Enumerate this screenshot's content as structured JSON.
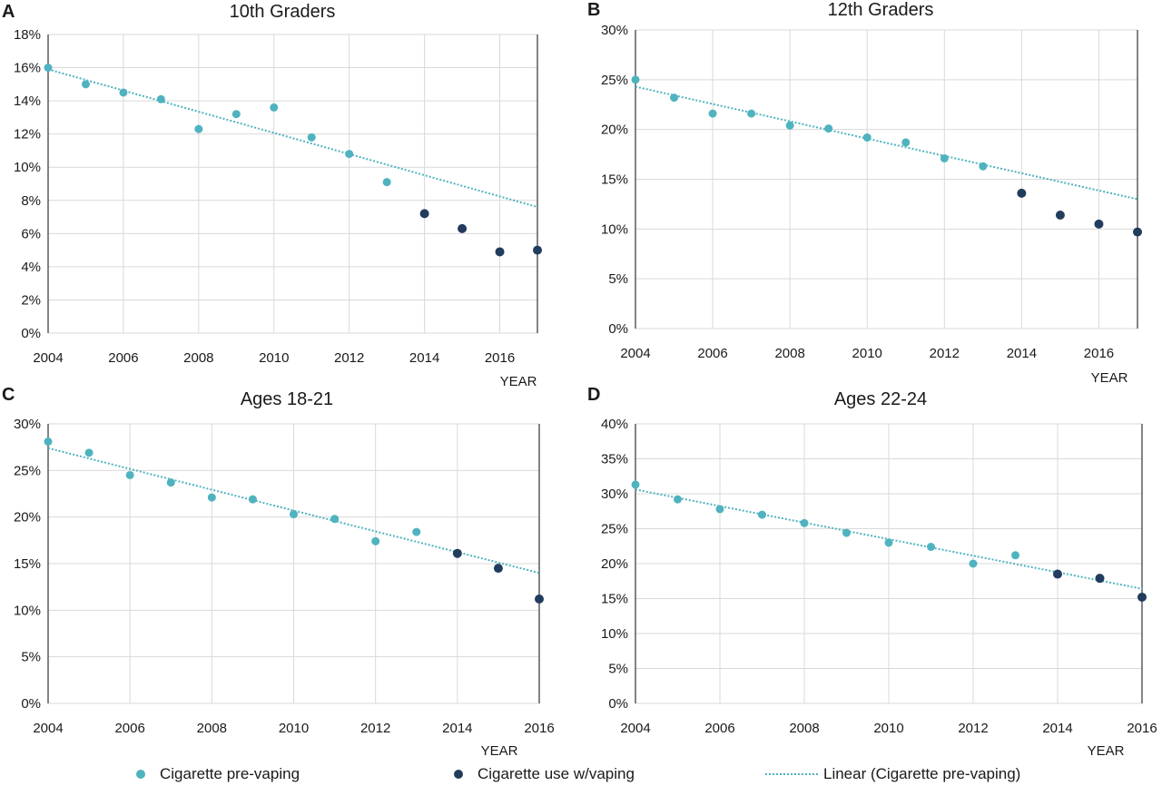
{
  "colors": {
    "pre_vaping": "#4fb3bf",
    "with_vaping": "#223c5e",
    "trendline": "#4fb3bf",
    "grid": "#d9d9d9"
  },
  "legend": {
    "pre_vaping": "Cigarette pre-vaping",
    "with_vaping": "Cigarette use w/vaping",
    "linear": "Linear (Cigarette pre-vaping)"
  },
  "chart_data": [
    {
      "type": "scatter",
      "panel_letter": "A",
      "title": "10th Graders",
      "xlabel": "YEAR",
      "ylabel": "",
      "xlim": [
        2004,
        2017
      ],
      "xticks": [
        "2004",
        "2006",
        "2008",
        "2010",
        "2012",
        "2014",
        "2016"
      ],
      "ylim": [
        0,
        18
      ],
      "yticks": [
        "0%",
        "2%",
        "4%",
        "6%",
        "8%",
        "10%",
        "12%",
        "14%",
        "16%",
        "18%"
      ],
      "grid": true,
      "series": [
        {
          "name": "Cigarette pre-vaping",
          "x": [
            2004,
            2005,
            2006,
            2007,
            2008,
            2009,
            2010,
            2011,
            2012,
            2013
          ],
          "y": [
            16.0,
            15.0,
            14.5,
            14.1,
            12.3,
            13.2,
            13.6,
            11.8,
            10.8,
            9.1
          ]
        },
        {
          "name": "Cigarette use w/vaping",
          "x": [
            2014,
            2015,
            2016,
            2017
          ],
          "y": [
            7.2,
            6.3,
            4.9,
            5.0
          ]
        }
      ],
      "trendline": {
        "name": "Linear (Cigarette pre-vaping)",
        "x": [
          2004,
          2017
        ],
        "y": [
          15.9,
          7.6
        ]
      }
    },
    {
      "type": "scatter",
      "panel_letter": "B",
      "title": "12th Graders",
      "xlabel": "YEAR",
      "ylabel": "",
      "xlim": [
        2004,
        2017
      ],
      "xticks": [
        "2004",
        "2006",
        "2008",
        "2010",
        "2012",
        "2014",
        "2016"
      ],
      "ylim": [
        0,
        30
      ],
      "yticks": [
        "0%",
        "5%",
        "10%",
        "15%",
        "20%",
        "25%",
        "30%"
      ],
      "grid": true,
      "series": [
        {
          "name": "Cigarette pre-vaping",
          "x": [
            2004,
            2005,
            2006,
            2007,
            2008,
            2009,
            2010,
            2011,
            2012,
            2013
          ],
          "y": [
            25.0,
            23.2,
            21.6,
            21.6,
            20.4,
            20.1,
            19.2,
            18.7,
            17.1,
            16.3
          ]
        },
        {
          "name": "Cigarette use w/vaping",
          "x": [
            2014,
            2015,
            2016,
            2017
          ],
          "y": [
            13.6,
            11.4,
            10.5,
            9.7
          ]
        }
      ],
      "trendline": {
        "name": "Linear (Cigarette pre-vaping)",
        "x": [
          2004,
          2017
        ],
        "y": [
          24.3,
          13.0
        ]
      }
    },
    {
      "type": "scatter",
      "panel_letter": "C",
      "title": "Ages 18-21",
      "xlabel": "YEAR",
      "ylabel": "",
      "xlim": [
        2004,
        2016
      ],
      "xticks": [
        "2004",
        "2006",
        "2008",
        "2010",
        "2012",
        "2014",
        "2016"
      ],
      "ylim": [
        0,
        30
      ],
      "yticks": [
        "0%",
        "5%",
        "10%",
        "15%",
        "20%",
        "25%",
        "30%"
      ],
      "grid": true,
      "series": [
        {
          "name": "Cigarette pre-vaping",
          "x": [
            2004,
            2005,
            2006,
            2007,
            2008,
            2009,
            2010,
            2011,
            2012,
            2013
          ],
          "y": [
            28.1,
            26.9,
            24.5,
            23.7,
            22.1,
            21.9,
            20.3,
            19.8,
            17.4,
            18.4
          ]
        },
        {
          "name": "Cigarette use w/vaping",
          "x": [
            2014,
            2015,
            2016
          ],
          "y": [
            16.1,
            14.5,
            11.2
          ]
        }
      ],
      "trendline": {
        "name": "Linear (Cigarette pre-vaping)",
        "x": [
          2004,
          2016
        ],
        "y": [
          27.4,
          14.0
        ]
      }
    },
    {
      "type": "scatter",
      "panel_letter": "D",
      "title": "Ages 22-24",
      "xlabel": "YEAR",
      "ylabel": "",
      "xlim": [
        2004,
        2016
      ],
      "xticks": [
        "2004",
        "2006",
        "2008",
        "2010",
        "2012",
        "2014",
        "2016"
      ],
      "ylim": [
        0,
        40
      ],
      "yticks": [
        "0%",
        "5%",
        "10%",
        "15%",
        "20%",
        "25%",
        "30%",
        "35%",
        "40%"
      ],
      "grid": true,
      "series": [
        {
          "name": "Cigarette pre-vaping",
          "x": [
            2004,
            2005,
            2006,
            2007,
            2008,
            2009,
            2010,
            2011,
            2012,
            2013
          ],
          "y": [
            31.3,
            29.2,
            27.8,
            27.0,
            25.8,
            24.4,
            23.0,
            22.4,
            20.0,
            21.2
          ]
        },
        {
          "name": "Cigarette use w/vaping",
          "x": [
            2014,
            2015,
            2016
          ],
          "y": [
            18.5,
            17.9,
            15.2
          ]
        }
      ],
      "trendline": {
        "name": "Linear (Cigarette pre-vaping)",
        "x": [
          2004,
          2016
        ],
        "y": [
          30.6,
          16.4
        ]
      }
    }
  ]
}
